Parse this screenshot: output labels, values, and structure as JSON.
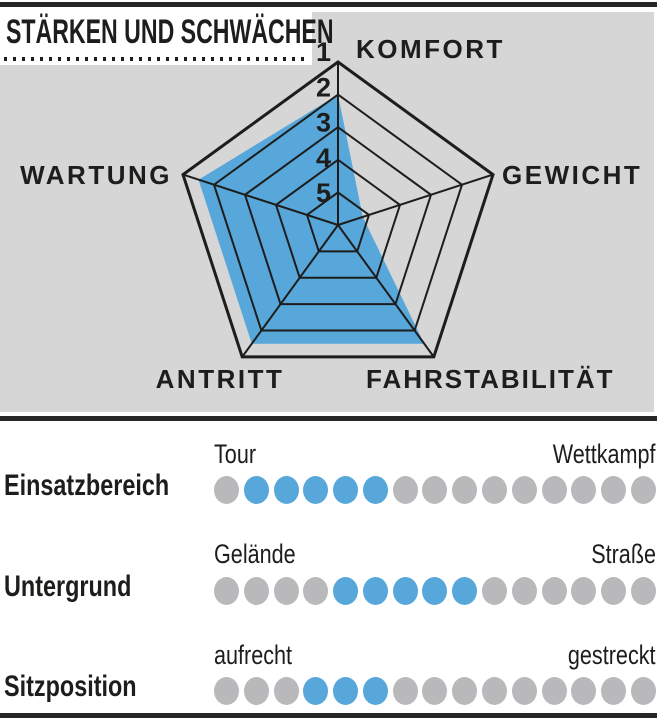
{
  "title": "STÄRKEN UND SCHWÄCHEN",
  "colors": {
    "accent_blue": "#57a7db",
    "dot_gray": "#b9b9bb",
    "panel_gray": "#d6d6d6",
    "ink": "#1d1d1b"
  },
  "chart_data": [
    {
      "type": "radar",
      "title": "STÄRKEN UND SCHWÄCHEN",
      "axes": [
        "KOMFORT",
        "GEWICHT",
        "FAHRSTABILITÄT",
        "ANTRITT",
        "WARTUNG"
      ],
      "values": [
        2,
        5,
        1.5,
        1.5,
        1.5
      ],
      "values_plotted": [
        2,
        5.2,
        1.5,
        1.5,
        1.5
      ],
      "scale": {
        "rings": [
          "1",
          "2",
          "3",
          "4",
          "5"
        ],
        "outermost_value": 1,
        "innermost_value": 5,
        "note": "1 = outer ring, 5 = inner ring"
      },
      "fill_color": "#57a7db",
      "grid_color": "#1d1d1b"
    },
    {
      "type": "dot-scale",
      "rows": [
        {
          "label": "Einsatzbereich",
          "left_end": "Tour",
          "right_end": "Wettkampf",
          "dots_total": 15,
          "blue_from": 2,
          "blue_to": 6
        },
        {
          "label": "Untergrund",
          "left_end": "Gelände",
          "right_end": "Straße",
          "dots_total": 15,
          "blue_from": 5,
          "blue_to": 9
        },
        {
          "label": "Sitzposition",
          "left_end": "aufrecht",
          "right_end": "gestreckt",
          "dots_total": 15,
          "blue_from": 4,
          "blue_to": 6
        }
      ]
    }
  ]
}
